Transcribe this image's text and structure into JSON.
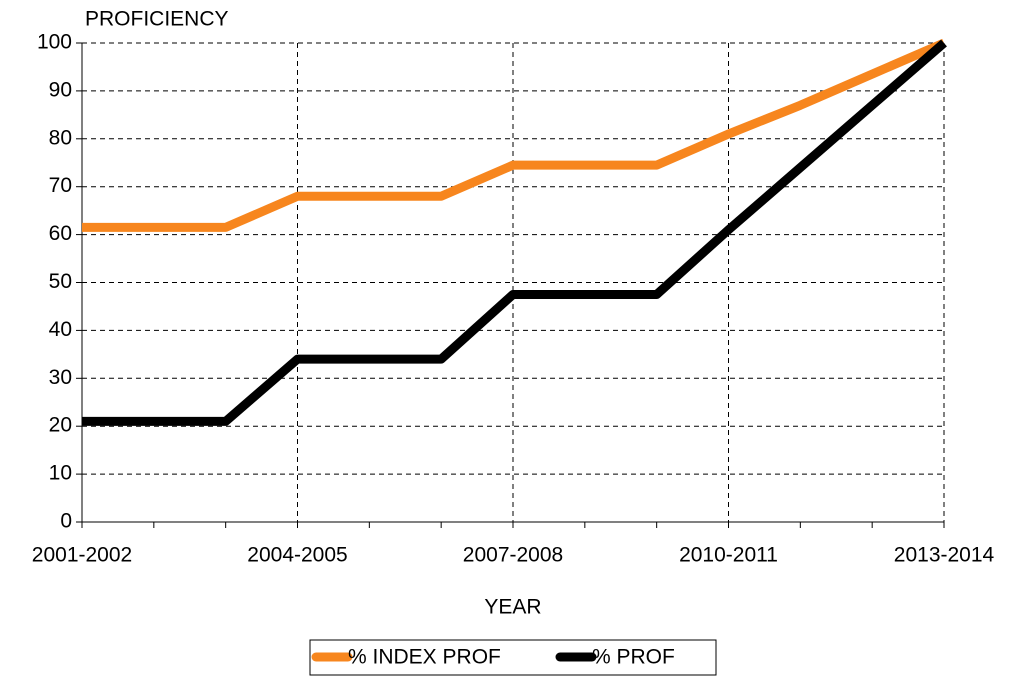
{
  "chart_data": {
    "type": "line",
    "y_label": "PROFICIENCY",
    "x_label": "YEAR",
    "categories": [
      "2001-2002",
      null,
      null,
      "2004-2005",
      null,
      null,
      "2007-2008",
      null,
      null,
      "2010-2011",
      null,
      null,
      "2013-2014"
    ],
    "series": [
      {
        "name": "% INDEX PROF",
        "color": "#f7861e",
        "values": [
          61.5,
          61.5,
          61.5,
          68,
          68,
          68,
          74.5,
          74.5,
          74.5,
          81,
          87,
          93.5,
          100
        ]
      },
      {
        "name": "% PROF",
        "color": "#000000",
        "values": [
          21,
          21,
          21,
          34,
          34,
          34,
          47.5,
          47.5,
          47.5,
          61,
          74,
          87,
          100
        ]
      }
    ],
    "ylim": [
      0,
      100
    ],
    "yticks": [
      0,
      10,
      20,
      30,
      40,
      50,
      60,
      70,
      80,
      90,
      100
    ],
    "grid": true
  }
}
